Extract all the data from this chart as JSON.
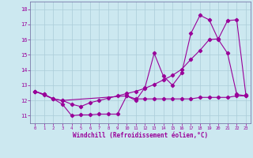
{
  "xlabel": "Windchill (Refroidissement éolien,°C)",
  "bg_color": "#cce8f0",
  "line_color": "#990099",
  "grid_color": "#aaccd8",
  "spine_color": "#7a7aaa",
  "ylim": [
    10.5,
    18.5
  ],
  "xlim": [
    -0.5,
    23.5
  ],
  "yticks": [
    11,
    12,
    13,
    14,
    15,
    16,
    17,
    18
  ],
  "xticks": [
    0,
    1,
    2,
    3,
    4,
    5,
    6,
    7,
    8,
    9,
    10,
    11,
    12,
    13,
    14,
    15,
    16,
    17,
    18,
    19,
    20,
    21,
    22,
    23
  ],
  "line1_x": [
    0,
    1,
    2,
    3,
    4,
    5,
    6,
    7,
    8,
    9,
    10,
    11,
    12,
    13,
    14,
    15,
    16,
    17,
    18,
    19,
    20,
    21,
    22,
    23
  ],
  "line1_y": [
    12.6,
    12.4,
    12.1,
    11.75,
    11.0,
    11.05,
    11.05,
    11.1,
    11.1,
    11.1,
    12.3,
    12.0,
    12.85,
    15.1,
    13.6,
    13.0,
    13.8,
    16.4,
    17.6,
    17.3,
    16.0,
    15.1,
    12.4,
    12.3
  ],
  "line2_x": [
    0,
    1,
    2,
    3,
    4,
    5,
    6,
    7,
    8,
    9,
    10,
    11,
    12,
    13,
    14,
    15,
    16,
    17,
    18,
    19,
    20,
    21,
    22,
    23
  ],
  "line2_y": [
    12.6,
    12.4,
    12.1,
    12.0,
    11.75,
    11.6,
    11.85,
    12.0,
    12.15,
    12.3,
    12.45,
    12.6,
    12.8,
    13.05,
    13.35,
    13.65,
    14.05,
    14.7,
    15.3,
    16.0,
    16.05,
    17.25,
    17.3,
    12.35
  ],
  "line3_x": [
    0,
    1,
    2,
    3,
    10,
    11,
    12,
    13,
    14,
    15,
    16,
    17,
    18,
    19,
    20,
    21,
    22,
    23
  ],
  "line3_y": [
    12.6,
    12.35,
    12.1,
    12.0,
    12.3,
    12.1,
    12.1,
    12.1,
    12.1,
    12.1,
    12.1,
    12.1,
    12.2,
    12.2,
    12.2,
    12.2,
    12.3,
    12.3
  ]
}
